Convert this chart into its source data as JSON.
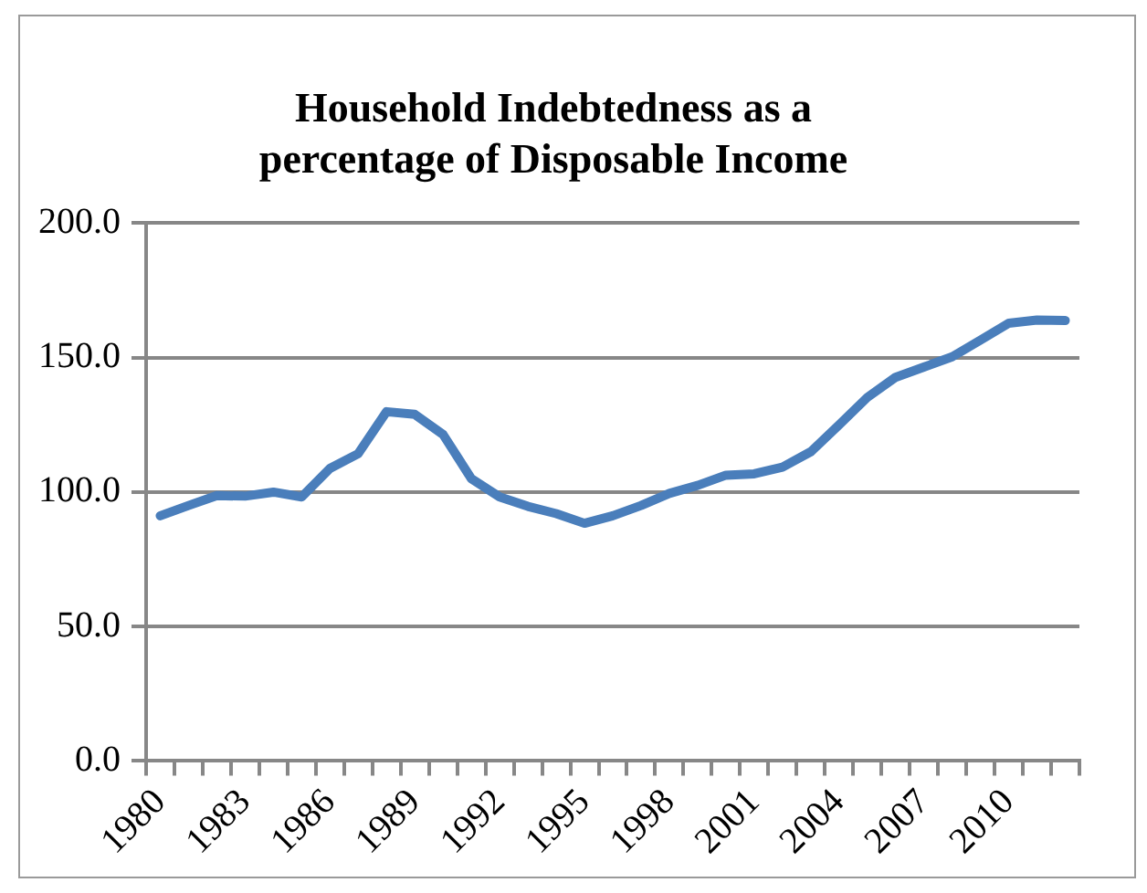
{
  "chart_data": {
    "type": "line",
    "title": "Household Indebtedness as a\npercentage of Disposable Income",
    "categories": [
      "1980",
      null,
      null,
      "1983",
      null,
      null,
      "1986",
      null,
      null,
      "1989",
      null,
      null,
      "1992",
      null,
      null,
      "1995",
      null,
      null,
      "1998",
      null,
      null,
      "2001",
      null,
      null,
      "2004",
      null,
      null,
      "2007",
      null,
      null,
      "2010",
      null,
      null
    ],
    "series": [
      {
        "color": "#4a7ebb",
        "values": [
          91.2,
          95,
          98.7,
          98.5,
          100,
          98.2,
          108.8,
          114.3,
          129.9,
          128.9,
          121.4,
          105,
          98.2,
          94.7,
          92,
          88.4,
          91.2,
          95,
          99.5,
          102.5,
          106.3,
          106.8,
          109.3,
          115,
          125,
          135.2,
          142.7,
          146.5,
          150.3,
          156.5,
          162.8,
          164,
          163.8
        ]
      }
    ],
    "ylim": [
      0,
      200
    ],
    "yticks": [
      {
        "value": 0,
        "label": "0.0"
      },
      {
        "value": 50,
        "label": "50.0"
      },
      {
        "value": 100,
        "label": "100.0"
      },
      {
        "value": 150,
        "label": "150.0"
      },
      {
        "value": 200,
        "label": "200.0"
      }
    ],
    "grid": "y",
    "legend": false,
    "marker": "none",
    "line_style": "solid"
  }
}
